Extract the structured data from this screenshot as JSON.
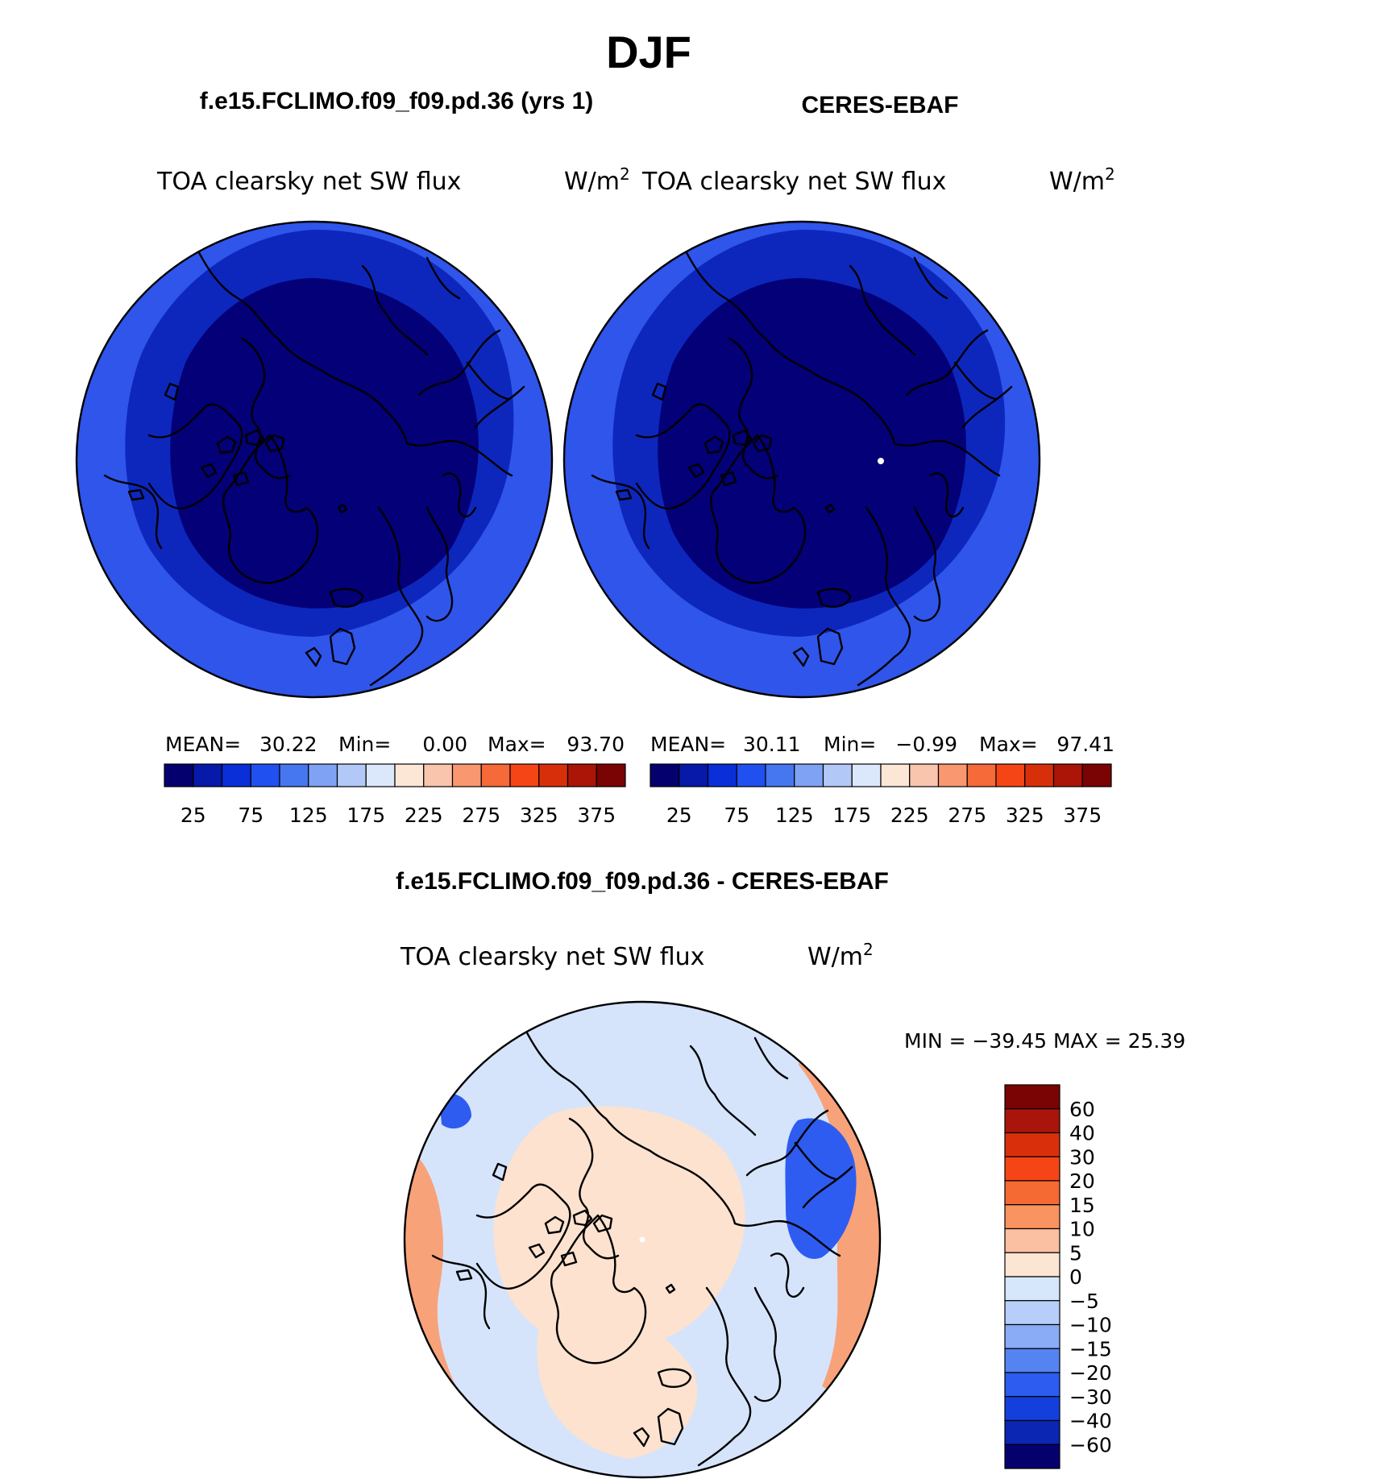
{
  "figure": {
    "season": "DJF",
    "left_case": "f.e15.FCLIMO.f09_f09.pd.36 (yrs 1)",
    "right_case": "CERES-EBAF",
    "diff_title": "f.e15.FCLIMO.f09_f09.pd.36 - CERES-EBAF"
  },
  "panels": {
    "left": {
      "variable": "TOA clearsky net SW flux",
      "units_base": "W/m",
      "units_exp": "2",
      "mean_label": "MEAN=",
      "mean": "30.22",
      "min_label": "Min=",
      "min": "0.00",
      "max_label": "Max=",
      "max": "93.70"
    },
    "right": {
      "variable": "TOA clearsky net SW flux",
      "units_base": "W/m",
      "units_exp": "2",
      "mean_label": "MEAN=",
      "mean": "30.11",
      "min_label": "Min=",
      "min": "−0.99",
      "max_label": "Max=",
      "max": "97.41"
    },
    "diff": {
      "variable": "TOA clearsky net SW flux",
      "units_base": "W/m",
      "units_exp": "2",
      "minmax": "MIN = −39.45 MAX =   25.39"
    }
  },
  "colorbars": {
    "abs_colors": [
      "#04006e",
      "#0619a8",
      "#0a2fd8",
      "#2150f0",
      "#4677f0",
      "#7fa2f4",
      "#b2c9f8",
      "#dbe8fb",
      "#fce6d6",
      "#fac5ad",
      "#f89770",
      "#f56a38",
      "#f54517",
      "#d82f0b",
      "#aa1508",
      "#7a0303"
    ],
    "abs_tick_labels": [
      "25",
      "75",
      "125",
      "175",
      "225",
      "275",
      "325",
      "375"
    ],
    "diff_colors": [
      "#04006e",
      "#0b26b3",
      "#1340dc",
      "#2c5cf0",
      "#5683f2",
      "#8aacf6",
      "#b6cef9",
      "#d6e6fb",
      "#fde5d3",
      "#fbbfa1",
      "#f9935f",
      "#f56a33",
      "#f54516",
      "#d9300b",
      "#a9150a",
      "#7a0303"
    ],
    "diff_tick_labels": [
      "60",
      "40",
      "30",
      "20",
      "15",
      "10",
      "5",
      "0",
      "−5",
      "−10",
      "−15",
      "−20",
      "−30",
      "−40",
      "−60"
    ]
  },
  "map_fills": {
    "abs_outer": "#2f55ea",
    "abs_mid": "#0d27bd",
    "abs_inner": "#040078",
    "diff_base": "#d5e4fb",
    "diff_pos": "#fce2cf",
    "diff_warm": "#f8a27a",
    "diff_cool": "#2e5cf0",
    "pole_dot": "#ffffff"
  }
}
